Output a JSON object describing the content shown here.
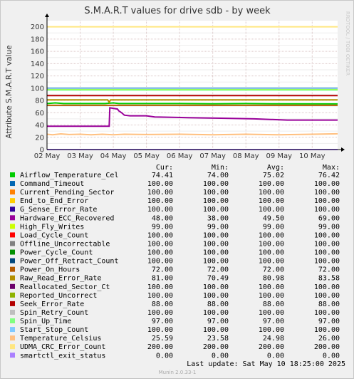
{
  "chart_data": {
    "type": "line",
    "title": "S.M.A.R.T values for drive sdb - by week",
    "ylabel": "Attribute S.M.A.R.T value",
    "side_label": "RRDTOOL / TOBI OETIKER",
    "ylim": [
      0,
      210
    ],
    "yticks": [
      0,
      20,
      40,
      60,
      80,
      100,
      120,
      140,
      160,
      180,
      200
    ],
    "xlim": [
      "2025-05-02 00:00",
      "2025-05-10 18:25"
    ],
    "xtick_labels": [
      "02 May",
      "03 May",
      "04 May",
      "05 May",
      "06 May",
      "07 May",
      "08 May",
      "09 May",
      "10 May"
    ],
    "xtick_values": [
      "2025-05-02",
      "2025-05-03",
      "2025-05-04",
      "2025-05-05",
      "2025-05-06",
      "2025-05-07",
      "2025-05-08",
      "2025-05-09",
      "2025-05-10"
    ],
    "grid": true,
    "legend_headers": [
      "Cur:",
      "Min:",
      "Avg:",
      "Max:"
    ],
    "series": [
      {
        "name": "Airflow_Temperature_Cel",
        "color": "#00cc00",
        "cur": "74.41",
        "min": "74.00",
        "avg": "75.02",
        "max": "76.42"
      },
      {
        "name": "Command_Timeout",
        "color": "#0066b3",
        "cur": "100.00",
        "min": "100.00",
        "avg": "100.00",
        "max": "100.00"
      },
      {
        "name": "Current_Pending_Sector",
        "color": "#ff8000",
        "cur": "100.00",
        "min": "100.00",
        "avg": "100.00",
        "max": "100.00"
      },
      {
        "name": "End_to_End_Error",
        "color": "#ffcc00",
        "cur": "100.00",
        "min": "100.00",
        "avg": "100.00",
        "max": "100.00"
      },
      {
        "name": "G_Sense_Error_Rate",
        "color": "#330099",
        "cur": "100.00",
        "min": "100.00",
        "avg": "100.00",
        "max": "100.00"
      },
      {
        "name": "Hardware_ECC_Recovered",
        "color": "#990099",
        "cur": "48.00",
        "min": "38.00",
        "avg": "49.50",
        "max": "69.00"
      },
      {
        "name": "High_Fly_Writes",
        "color": "#ccff00",
        "cur": "99.00",
        "min": "99.00",
        "avg": "99.00",
        "max": "99.00"
      },
      {
        "name": "Load_Cycle_Count",
        "color": "#ff0000",
        "cur": "100.00",
        "min": "100.00",
        "avg": "100.00",
        "max": "100.00"
      },
      {
        "name": "Offline_Uncorrectable",
        "color": "#808080",
        "cur": "100.00",
        "min": "100.00",
        "avg": "100.00",
        "max": "100.00"
      },
      {
        "name": "Power_Cycle_Count",
        "color": "#008f00",
        "cur": "100.00",
        "min": "100.00",
        "avg": "100.00",
        "max": "100.00"
      },
      {
        "name": "Power_Off_Retract_Count",
        "color": "#00487d",
        "cur": "100.00",
        "min": "100.00",
        "avg": "100.00",
        "max": "100.00"
      },
      {
        "name": "Power_On_Hours",
        "color": "#b35a00",
        "cur": "72.00",
        "min": "72.00",
        "avg": "72.00",
        "max": "72.00"
      },
      {
        "name": "Raw_Read_Error_Rate",
        "color": "#b38f00",
        "cur": "81.00",
        "min": "70.49",
        "avg": "80.98",
        "max": "83.58"
      },
      {
        "name": "Reallocated_Sector_Ct",
        "color": "#6b006b",
        "cur": "100.00",
        "min": "100.00",
        "avg": "100.00",
        "max": "100.00"
      },
      {
        "name": "Reported_Uncorrect",
        "color": "#8fb300",
        "cur": "100.00",
        "min": "100.00",
        "avg": "100.00",
        "max": "100.00"
      },
      {
        "name": "Seek_Error_Rate",
        "color": "#b30000",
        "cur": "88.00",
        "min": "88.00",
        "avg": "88.00",
        "max": "88.00"
      },
      {
        "name": "Spin_Retry_Count",
        "color": "#bebebe",
        "cur": "100.00",
        "min": "100.00",
        "avg": "100.00",
        "max": "100.00"
      },
      {
        "name": "Spin_Up_Time",
        "color": "#80ff80",
        "cur": "97.00",
        "min": "97.00",
        "avg": "97.00",
        "max": "97.00"
      },
      {
        "name": "Start_Stop_Count",
        "color": "#80c9ff",
        "cur": "100.00",
        "min": "100.00",
        "avg": "100.00",
        "max": "100.00"
      },
      {
        "name": "Temperature_Celsius",
        "color": "#ffc080",
        "cur": "25.59",
        "min": "23.58",
        "avg": "24.98",
        "max": "26.00"
      },
      {
        "name": "UDMA_CRC_Error_Count",
        "color": "#ffe680",
        "cur": "200.00",
        "min": "200.00",
        "avg": "200.00",
        "max": "200.00"
      },
      {
        "name": "smartctl_exit_status",
        "color": "#aa80ff",
        "cur": "0.00",
        "min": "0.00",
        "avg": "0.00",
        "max": "0.00"
      }
    ],
    "series_points": {
      "Airflow_Temperature_Cel": [
        [
          "2025-05-02 00:00",
          75
        ],
        [
          "2025-05-02 06:00",
          76
        ],
        [
          "2025-05-02 12:00",
          75
        ],
        [
          "2025-05-03 18:00",
          75
        ],
        [
          "2025-05-04 00:00",
          76
        ],
        [
          "2025-05-04 04:00",
          75
        ],
        [
          "2025-05-06 00:00",
          75
        ],
        [
          "2025-05-07 00:00",
          74.5
        ],
        [
          "2025-05-08 00:00",
          75
        ],
        [
          "2025-05-09 00:00",
          74.5
        ],
        [
          "2025-05-10 18:25",
          74.41
        ]
      ],
      "Hardware_ECC_Recovered": [
        [
          "2025-05-02 00:00",
          38
        ],
        [
          "2025-05-03 21:00",
          38
        ],
        [
          "2025-05-03 21:30",
          68
        ],
        [
          "2025-05-04 03:00",
          66
        ],
        [
          "2025-05-04 04:00",
          63
        ],
        [
          "2025-05-04 06:00",
          60
        ],
        [
          "2025-05-04 08:00",
          56
        ],
        [
          "2025-05-04 12:00",
          55
        ],
        [
          "2025-05-05 00:00",
          55
        ],
        [
          "2025-05-05 06:00",
          53
        ],
        [
          "2025-05-06 06:00",
          52
        ],
        [
          "2025-05-07 06:00",
          51
        ],
        [
          "2025-05-08 06:00",
          50
        ],
        [
          "2025-05-09 06:00",
          48
        ],
        [
          "2025-05-10 18:25",
          48
        ]
      ],
      "Raw_Read_Error_Rate": [
        [
          "2025-05-02 00:00",
          81
        ],
        [
          "2025-05-03 20:00",
          81
        ],
        [
          "2025-05-03 21:00",
          77
        ],
        [
          "2025-05-03 22:00",
          81
        ],
        [
          "2025-05-10 18:25",
          81
        ]
      ],
      "Temperature_Celsius": [
        [
          "2025-05-02 00:00",
          25
        ],
        [
          "2025-05-02 04:00",
          24
        ],
        [
          "2025-05-02 10:00",
          25.5
        ],
        [
          "2025-05-02 16:00",
          24.5
        ],
        [
          "2025-05-03 00:00",
          25
        ],
        [
          "2025-05-03 08:00",
          24
        ],
        [
          "2025-05-03 16:00",
          25
        ],
        [
          "2025-05-04 00:00",
          24
        ],
        [
          "2025-05-04 08:00",
          25
        ],
        [
          "2025-05-05 00:00",
          24.5
        ],
        [
          "2025-05-06 00:00",
          25
        ],
        [
          "2025-05-07 00:00",
          24
        ],
        [
          "2025-05-08 00:00",
          25
        ],
        [
          "2025-05-09 00:00",
          24
        ],
        [
          "2025-05-10 00:00",
          25
        ],
        [
          "2025-05-10 18:25",
          25.59
        ]
      ]
    },
    "last_update": "Last update:  Sat May 10 18:25:00 2025",
    "footer": "Munin 2.0.33-1"
  }
}
